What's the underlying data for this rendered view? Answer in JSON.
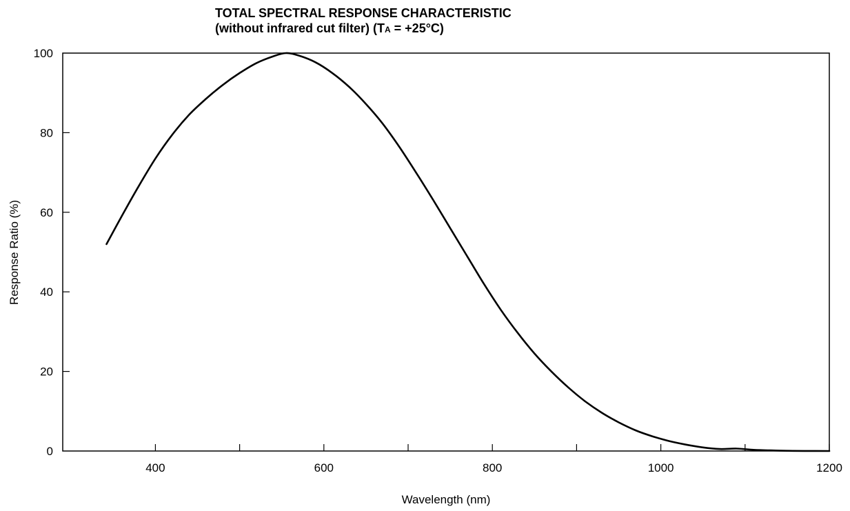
{
  "chart_data": {
    "type": "line",
    "title_line1": "TOTAL SPECTRAL RESPONSE CHARACTERISTIC",
    "title_line2_prefix": "(without infrared cut filter) (T",
    "title_line2_sub": "A",
    "title_line2_suffix": " = +25°C)",
    "xlabel": "Wavelength (nm)",
    "ylabel": "Response Ratio (%)",
    "xlim": [
      290,
      1200
    ],
    "ylim": [
      0,
      100
    ],
    "xticks": [
      400,
      600,
      800,
      1000,
      1200
    ],
    "xticks_minor": [
      500,
      700,
      900,
      1100
    ],
    "yticks": [
      0,
      20,
      40,
      60,
      80,
      100
    ],
    "grid": false,
    "series": [
      {
        "x": [
          342,
          360,
          380,
          400,
          420,
          440,
          460,
          480,
          500,
          520,
          540,
          555,
          570,
          590,
          610,
          630,
          650,
          670,
          690,
          710,
          730,
          750,
          770,
          790,
          810,
          830,
          850,
          870,
          890,
          910,
          930,
          950,
          970,
          990,
          1010,
          1030,
          1050,
          1070,
          1090,
          1110,
          1130,
          1150,
          1170,
          1200
        ],
        "y": [
          52,
          59,
          66.5,
          73.5,
          79.5,
          84.5,
          88.5,
          92,
          95,
          97.5,
          99.2,
          100,
          99.4,
          97.7,
          95,
          91.5,
          87.2,
          82.2,
          76.3,
          69.8,
          63,
          56,
          49,
          42,
          35.5,
          29.7,
          24.5,
          20,
          16,
          12.5,
          9.6,
          7.2,
          5.2,
          3.7,
          2.5,
          1.6,
          0.9,
          0.5,
          0.6,
          0.3,
          0.15,
          0.05,
          0.02,
          0
        ]
      }
    ]
  }
}
